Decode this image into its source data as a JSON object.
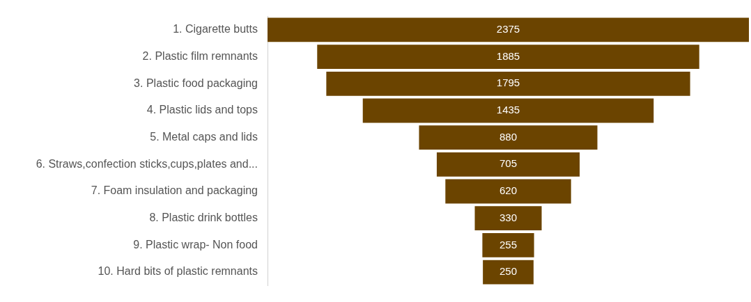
{
  "chart_data": {
    "type": "other",
    "categories": [
      "1. Cigarette butts",
      "2. Plastic film remnants",
      "3. Plastic food packaging",
      "4. Plastic lids and tops",
      "5. Metal caps and lids",
      "6. Straws,confection sticks,cups,plates and...",
      "7. Foam insulation and packaging",
      "8. Plastic drink bottles",
      "9. Plastic wrap- Non food",
      "10. Hard bits of plastic remnants"
    ],
    "values": [
      2375,
      1885,
      1795,
      1435,
      880,
      705,
      620,
      330,
      255,
      250
    ],
    "color": "#6b4400",
    "data_labels": true
  }
}
